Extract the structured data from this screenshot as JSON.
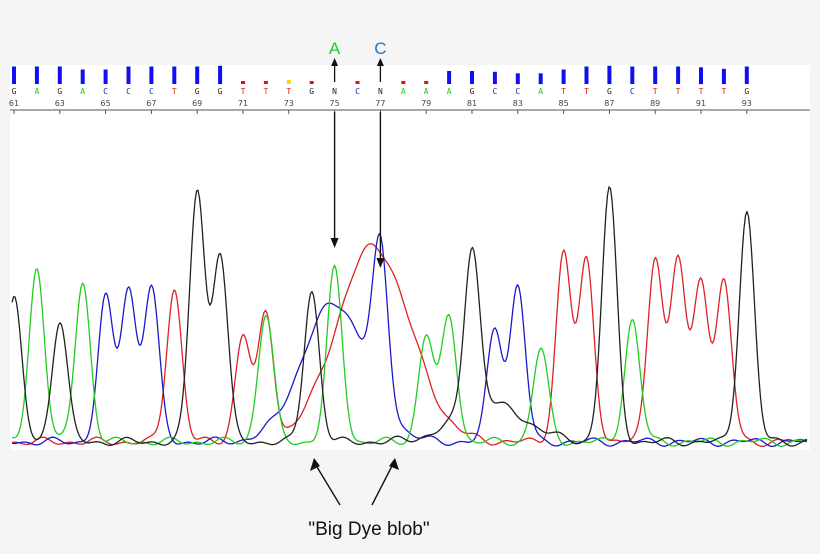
{
  "chart_data": {
    "type": "line",
    "title": "",
    "xlabel": "",
    "ylabel": "",
    "grid": false,
    "colors": {
      "A": "#22cc22",
      "C": "#1a1acc",
      "G": "#222222",
      "T": "#dd2222",
      "N": "#222222"
    },
    "base_calls": [
      "G",
      "A",
      "G",
      "A",
      "C",
      "C",
      "C",
      "T",
      "G",
      "G",
      "T",
      "T",
      "T",
      "G",
      "N",
      "C",
      "N",
      "A",
      "A",
      "A",
      "G",
      "C",
      "C",
      "A",
      "T",
      "T",
      "G",
      "C",
      "T",
      "T",
      "T",
      "T",
      "G"
    ],
    "base_quality": [
      0.9,
      0.9,
      0.9,
      0.7,
      0.7,
      0.9,
      0.9,
      0.9,
      0.9,
      0.95,
      0.1,
      0.1,
      0.15,
      0.1,
      0.05,
      0.1,
      0.05,
      0.1,
      0.1,
      0.6,
      0.6,
      0.55,
      0.45,
      0.45,
      0.7,
      0.9,
      0.95,
      0.9,
      0.9,
      0.9,
      0.85,
      0.75,
      0.9
    ],
    "position_ticks": [
      {
        "text": "61",
        "index": 0
      },
      {
        "text": "63",
        "index": 2
      },
      {
        "text": "65",
        "index": 4
      },
      {
        "text": "67",
        "index": 6
      },
      {
        "text": "69",
        "index": 8
      },
      {
        "text": "71",
        "index": 10
      },
      {
        "text": "73",
        "index": 12
      },
      {
        "text": "75",
        "index": 14
      },
      {
        "text": "77",
        "index": 16
      },
      {
        "text": "79",
        "index": 18
      },
      {
        "text": "81",
        "index": 20
      },
      {
        "text": "83",
        "index": 22
      },
      {
        "text": "85",
        "index": 24
      },
      {
        "text": "87",
        "index": 26
      },
      {
        "text": "89",
        "index": 28
      },
      {
        "text": "91",
        "index": 30
      },
      {
        "text": "93",
        "index": 32
      }
    ],
    "traces": [
      {
        "base": "G",
        "peaks": [
          [
            0,
            0.68
          ],
          [
            2,
            0.58
          ],
          [
            8,
            1.2
          ],
          [
            9,
            0.9
          ],
          [
            13,
            0.72
          ],
          [
            20,
            0.78
          ],
          [
            26,
            1.2
          ],
          [
            32,
            1.1
          ]
        ]
      },
      {
        "base": "A",
        "peaks": [
          [
            1,
            0.83
          ],
          [
            3,
            0.76
          ],
          [
            11,
            0.61
          ],
          [
            14,
            0.82
          ],
          [
            18,
            0.51
          ],
          [
            19,
            0.6
          ],
          [
            23,
            0.44
          ],
          [
            27,
            0.58
          ]
        ]
      },
      {
        "base": "C",
        "peaks": [
          [
            4,
            0.68
          ],
          [
            5,
            0.73
          ],
          [
            6,
            0.74
          ],
          [
            16,
            0.73
          ],
          [
            21,
            0.54
          ],
          [
            22,
            0.74
          ]
        ]
      },
      {
        "base": "T",
        "peaks": [
          [
            7,
            0.73
          ],
          [
            10,
            0.51
          ],
          [
            11,
            0.6
          ],
          [
            24,
            0.9
          ],
          [
            25,
            0.86
          ],
          [
            28,
            0.89
          ],
          [
            29,
            0.87
          ],
          [
            30,
            0.77
          ],
          [
            31,
            0.76
          ]
        ]
      }
    ],
    "blob": [
      {
        "base": "C",
        "center": 14.0,
        "height": 0.66,
        "width": 1.4
      },
      {
        "base": "T",
        "center": 15.7,
        "height": 0.93,
        "width": 1.6
      },
      {
        "base": "G",
        "center": 20.8,
        "height": 0.18,
        "width": 1.5
      }
    ],
    "annotations": [
      {
        "text": "A",
        "color": "#22cc22",
        "index": 14
      },
      {
        "text": "C",
        "color": "#1a7acc",
        "index": 16
      }
    ],
    "caption": "\"Big Dye blob\""
  }
}
